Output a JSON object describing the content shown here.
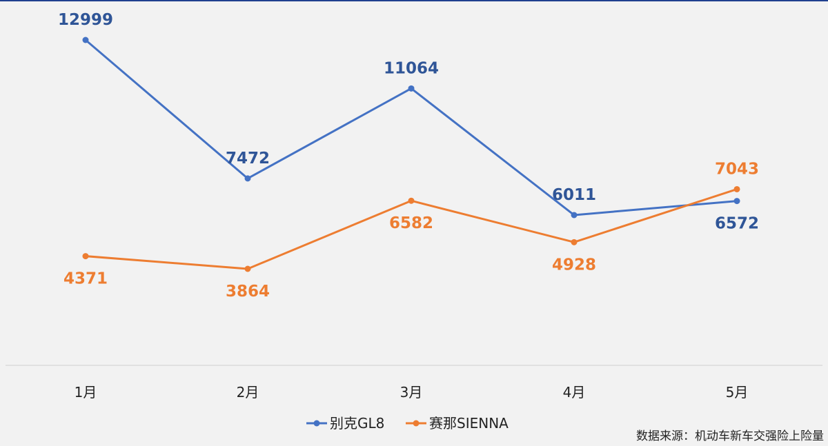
{
  "chart_data": {
    "type": "line",
    "categories": [
      "1月",
      "2月",
      "3月",
      "4月",
      "5月"
    ],
    "series": [
      {
        "name": "别克GL8",
        "color": "#4472c4",
        "values": [
          12999,
          7472,
          11064,
          6011,
          6572
        ]
      },
      {
        "name": "赛那SIENNA",
        "color": "#ed7d31",
        "values": [
          4371,
          3864,
          6582,
          4928,
          7043
        ]
      }
    ],
    "ylim": [
      0,
      14000
    ],
    "grid": false,
    "legend_position": "bottom"
  },
  "source_note": "数据来源：机动车新车交强险上险量"
}
